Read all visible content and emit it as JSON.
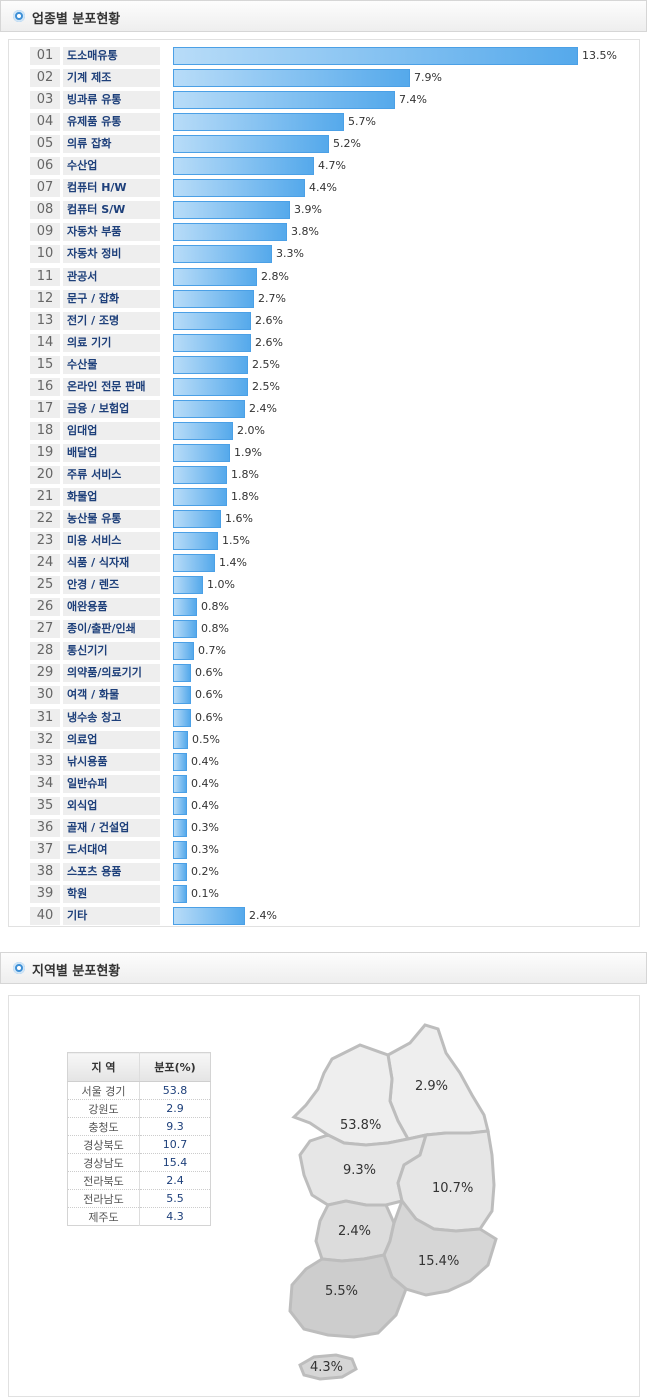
{
  "sections": {
    "industry_title": "업종별 분포현황",
    "region_title": "지역별 분포현황"
  },
  "chart_data": [
    {
      "type": "bar",
      "orientation": "horizontal",
      "title": "업종별 분포현황",
      "categories": [
        {
          "num": "01",
          "name": "도소매유통",
          "value": 13.5,
          "label": "13.5%"
        },
        {
          "num": "02",
          "name": "기계 제조",
          "value": 7.9,
          "label": "7.9%"
        },
        {
          "num": "03",
          "name": "빙과류 유통",
          "value": 7.4,
          "label": "7.4%"
        },
        {
          "num": "04",
          "name": "유제품 유통",
          "value": 5.7,
          "label": "5.7%"
        },
        {
          "num": "05",
          "name": "의류 잡화",
          "value": 5.2,
          "label": "5.2%"
        },
        {
          "num": "06",
          "name": "수산업",
          "value": 4.7,
          "label": "4.7%"
        },
        {
          "num": "07",
          "name": "컴퓨터 H/W",
          "value": 4.4,
          "label": "4.4%"
        },
        {
          "num": "08",
          "name": "컴퓨터 S/W",
          "value": 3.9,
          "label": "3.9%"
        },
        {
          "num": "09",
          "name": "자동차 부품",
          "value": 3.8,
          "label": "3.8%"
        },
        {
          "num": "10",
          "name": "자동차 정비",
          "value": 3.3,
          "label": "3.3%"
        },
        {
          "num": "11",
          "name": "관공서",
          "value": 2.8,
          "label": "2.8%"
        },
        {
          "num": "12",
          "name": "문구 / 잡화",
          "value": 2.7,
          "label": "2.7%"
        },
        {
          "num": "13",
          "name": "전기 / 조명",
          "value": 2.6,
          "label": "2.6%"
        },
        {
          "num": "14",
          "name": "의료 기기",
          "value": 2.6,
          "label": "2.6%"
        },
        {
          "num": "15",
          "name": "수산물",
          "value": 2.5,
          "label": "2.5%"
        },
        {
          "num": "16",
          "name": "온라인 전문 판매",
          "value": 2.5,
          "label": "2.5%"
        },
        {
          "num": "17",
          "name": "금융 / 보험업",
          "value": 2.4,
          "label": "2.4%"
        },
        {
          "num": "18",
          "name": "임대업",
          "value": 2.0,
          "label": "2.0%"
        },
        {
          "num": "19",
          "name": "배달업",
          "value": 1.9,
          "label": "1.9%"
        },
        {
          "num": "20",
          "name": "주류 서비스",
          "value": 1.8,
          "label": "1.8%"
        },
        {
          "num": "21",
          "name": "화물업",
          "value": 1.8,
          "label": "1.8%"
        },
        {
          "num": "22",
          "name": "농산물 유통",
          "value": 1.6,
          "label": "1.6%"
        },
        {
          "num": "23",
          "name": "미용 서비스",
          "value": 1.5,
          "label": "1.5%"
        },
        {
          "num": "24",
          "name": "식품 / 식자재",
          "value": 1.4,
          "label": "1.4%"
        },
        {
          "num": "25",
          "name": "안경 / 렌즈",
          "value": 1.0,
          "label": "1.0%"
        },
        {
          "num": "26",
          "name": "애완용품",
          "value": 0.8,
          "label": "0.8%"
        },
        {
          "num": "27",
          "name": "종이/출판/인쇄",
          "value": 0.8,
          "label": "0.8%"
        },
        {
          "num": "28",
          "name": "통신기기",
          "value": 0.7,
          "label": "0.7%"
        },
        {
          "num": "29",
          "name": "의약품/의료기기",
          "value": 0.6,
          "label": "0.6%"
        },
        {
          "num": "30",
          "name": "여객 / 화물",
          "value": 0.6,
          "label": "0.6%"
        },
        {
          "num": "31",
          "name": "냉수송 창고",
          "value": 0.6,
          "label": "0.6%"
        },
        {
          "num": "32",
          "name": "의료업",
          "value": 0.5,
          "label": "0.5%"
        },
        {
          "num": "33",
          "name": "낚시용품",
          "value": 0.4,
          "label": "0.4%"
        },
        {
          "num": "34",
          "name": "일반슈퍼",
          "value": 0.4,
          "label": "0.4%"
        },
        {
          "num": "35",
          "name": "외식업",
          "value": 0.4,
          "label": "0.4%"
        },
        {
          "num": "36",
          "name": "골재 / 건설업",
          "value": 0.3,
          "label": "0.3%"
        },
        {
          "num": "37",
          "name": "도서대여",
          "value": 0.3,
          "label": "0.3%"
        },
        {
          "num": "38",
          "name": "스포츠 용품",
          "value": 0.2,
          "label": "0.2%"
        },
        {
          "num": "39",
          "name": "학원",
          "value": 0.1,
          "label": "0.1%"
        },
        {
          "num": "40",
          "name": "기타",
          "value": 2.4,
          "label": "2.4%"
        }
      ],
      "bar_color": "#55a9eb",
      "grid": false
    },
    {
      "type": "table",
      "title": "지역별 분포현황",
      "columns": [
        "지 역",
        "분포(%)"
      ],
      "rows": [
        {
          "region": "서울 경기",
          "value": "53.8"
        },
        {
          "region": "강원도",
          "value": "2.9"
        },
        {
          "region": "충청도",
          "value": "9.3"
        },
        {
          "region": "경상북도",
          "value": "10.7"
        },
        {
          "region": "경상남도",
          "value": "15.4"
        },
        {
          "region": "전라북도",
          "value": "2.4"
        },
        {
          "region": "전라남도",
          "value": "5.5"
        },
        {
          "region": "제주도",
          "value": "4.3"
        }
      ],
      "map_labels": {
        "seoul": "53.8%",
        "gangwon": "2.9%",
        "chungcheong": "9.3%",
        "gyeongbuk": "10.7%",
        "gyeongnam": "15.4%",
        "jeonbuk": "2.4%",
        "jeonnam": "5.5%",
        "jeju": "4.3%"
      }
    }
  ]
}
